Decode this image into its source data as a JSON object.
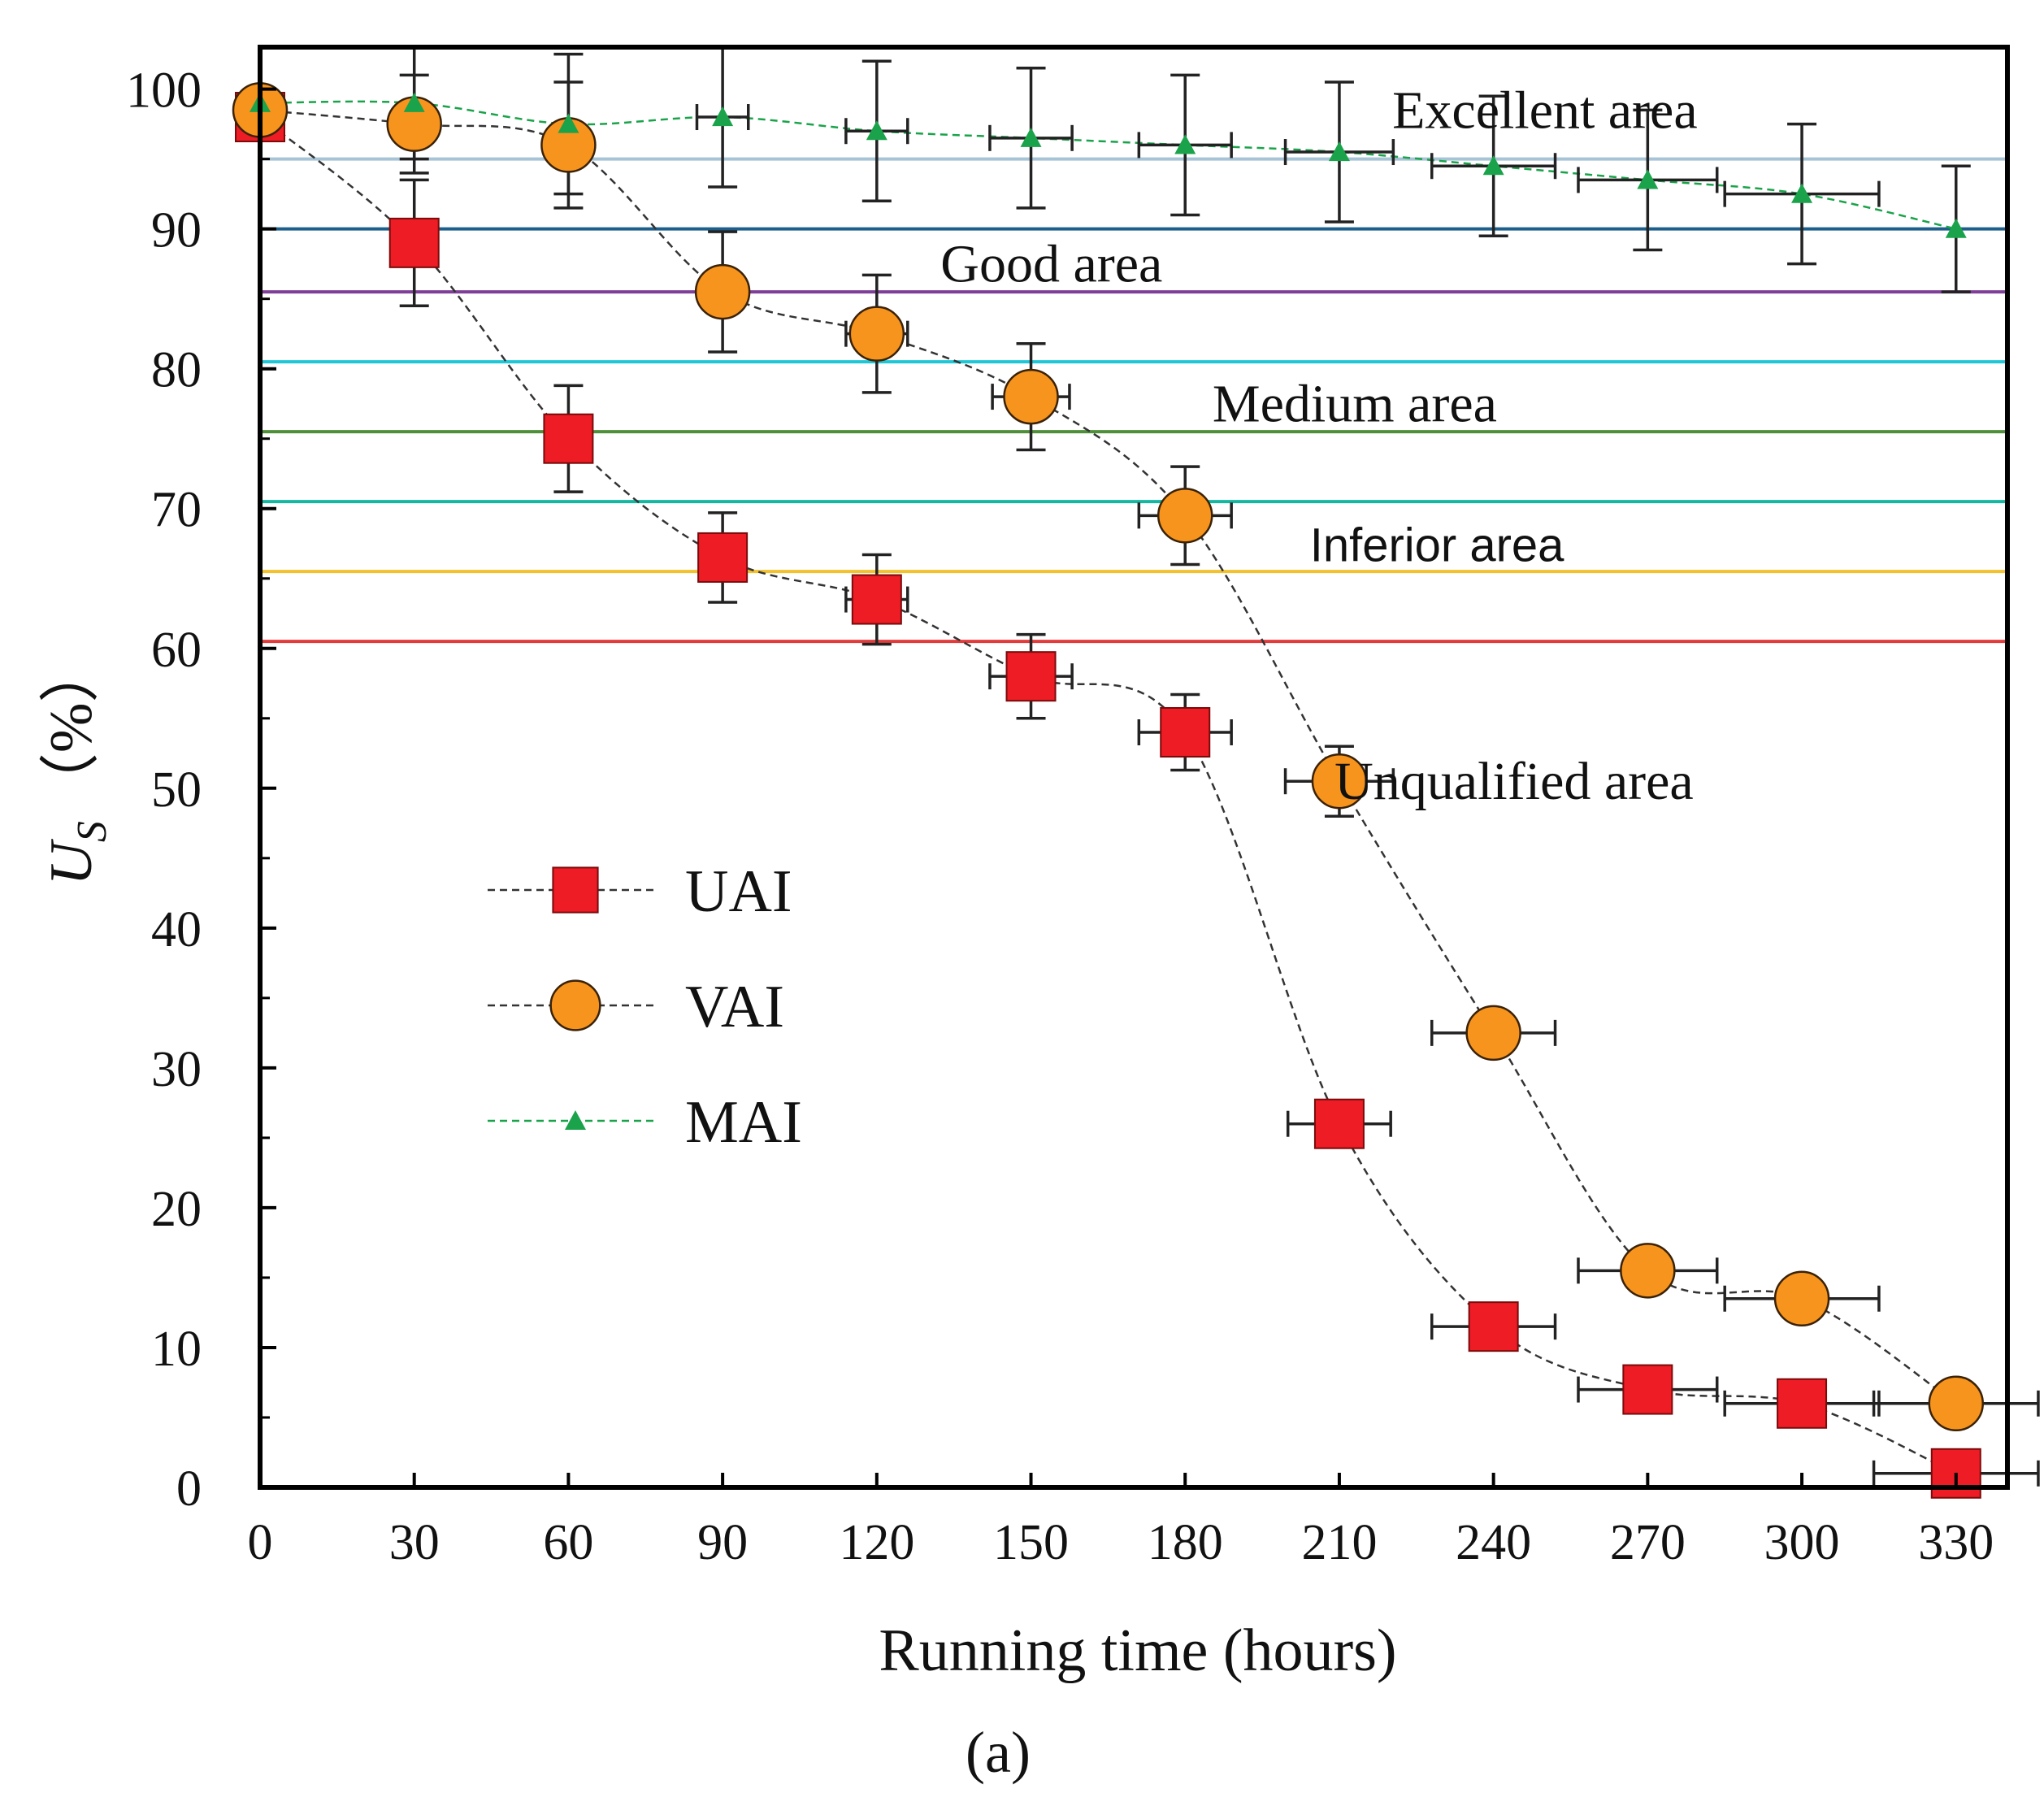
{
  "colors": {
    "uai": "#ee1c24",
    "vai": "#f7941d",
    "mai": "#1aa34a",
    "line_dark": "#333333",
    "frame": "#000000",
    "excellent_line": "#a7c3d6",
    "good_upper_line": "#1d5f8a",
    "good_lower_line": "#7e3f98",
    "medium_upper_line": "#1fc7d6",
    "medium_lower_line": "#4f8f3a",
    "inferior_upper_line": "#14b8a0",
    "inferior_lower_line": "#f2c12e",
    "unqualified_line": "#e23b3b"
  },
  "chart_data": {
    "type": "line",
    "title": "",
    "xlabel": "Running time (hours)",
    "ylabel_main": "U",
    "ylabel_sub": "S",
    "ylabel_unit": "（%）",
    "caption_label": "(a)",
    "xlim": [
      0,
      340
    ],
    "ylim": [
      0,
      103
    ],
    "xticks": [
      0,
      30,
      60,
      90,
      120,
      150,
      180,
      210,
      240,
      270,
      300,
      330
    ],
    "xtick_labels": [
      "0",
      "30",
      "60",
      "90",
      "120",
      "150",
      "180",
      "210",
      "240",
      "270",
      "300",
      "330"
    ],
    "yticks": [
      0,
      10,
      20,
      30,
      40,
      50,
      60,
      70,
      80,
      90,
      100
    ],
    "ytick_labels": [
      "0",
      "10",
      "20",
      "30",
      "40",
      "50",
      "60",
      "70",
      "80",
      "90",
      "100"
    ],
    "legend_placement": "center-left",
    "series": [
      {
        "name": "UAI",
        "marker": "square",
        "x": [
          0,
          30,
          60,
          90,
          120,
          150,
          180,
          210,
          240,
          270,
          300,
          330
        ],
        "y": [
          98,
          89,
          75,
          66.5,
          63.5,
          58,
          54,
          26,
          11.5,
          7,
          6,
          1
        ],
        "yerr": [
          1,
          4.5,
          3.8,
          3.2,
          3.2,
          3,
          2.7,
          0,
          0,
          0,
          0,
          0
        ],
        "xerr": [
          0,
          0,
          0,
          0,
          6,
          8,
          9,
          10,
          12,
          13.5,
          15,
          16
        ]
      },
      {
        "name": "VAI",
        "marker": "circle",
        "x": [
          0,
          30,
          60,
          90,
          120,
          150,
          180,
          210,
          240,
          270,
          300,
          330
        ],
        "y": [
          98.5,
          97.5,
          96,
          85.5,
          82.5,
          78,
          69.5,
          50.5,
          32.5,
          15.5,
          13.5,
          6
        ],
        "yerr": [
          0,
          3.5,
          4.5,
          4.3,
          4.2,
          3.8,
          3.5,
          2.5,
          0,
          0,
          0,
          0
        ],
        "xerr": [
          0,
          0,
          0,
          0,
          6,
          7.5,
          9,
          10.5,
          12,
          13.5,
          15,
          16
        ]
      },
      {
        "name": "MAI",
        "marker": "triangle",
        "x": [
          0,
          30,
          60,
          90,
          120,
          150,
          180,
          210,
          240,
          270,
          300,
          330
        ],
        "y": [
          99,
          99,
          97.5,
          98,
          97,
          96.5,
          96,
          95.5,
          94.5,
          93.5,
          92.5,
          90
        ],
        "yerr": [
          0,
          4,
          5,
          5,
          5,
          5,
          5,
          5,
          5,
          5,
          5,
          4.5
        ],
        "xerr": [
          0,
          0,
          0,
          5,
          6,
          8,
          9,
          10.5,
          12,
          13.5,
          15,
          0
        ]
      }
    ],
    "zone_lines": [
      {
        "name": "excellent-threshold-line",
        "y": 95,
        "color_key": "excellent_line"
      },
      {
        "name": "good-upper-line",
        "y": 90,
        "color_key": "good_upper_line"
      },
      {
        "name": "good-lower-line",
        "y": 85.5,
        "color_key": "good_lower_line"
      },
      {
        "name": "medium-upper-line",
        "y": 80.5,
        "color_key": "medium_upper_line"
      },
      {
        "name": "medium-lower-line",
        "y": 75.5,
        "color_key": "medium_lower_line"
      },
      {
        "name": "inferior-upper-line",
        "y": 70.5,
        "color_key": "inferior_upper_line"
      },
      {
        "name": "inferior-lower-line",
        "y": 65.5,
        "color_key": "inferior_lower_line"
      },
      {
        "name": "unqualified-threshold-line",
        "y": 60.5,
        "color_key": "unqualified_line"
      }
    ],
    "zone_labels": [
      {
        "text": "Excellent area",
        "x": 250,
        "y": 98.5,
        "style": "serif"
      },
      {
        "text": "Good area",
        "x": 154,
        "y": 87.5,
        "style": "serif"
      },
      {
        "text": "Medium area",
        "x": 213,
        "y": 77.5,
        "style": "serif"
      },
      {
        "text": "Inferior area",
        "x": 229,
        "y": 67.5,
        "style": "sans"
      },
      {
        "text": "Unqualified area",
        "x": 244,
        "y": 50.5,
        "style": "serif"
      }
    ]
  }
}
